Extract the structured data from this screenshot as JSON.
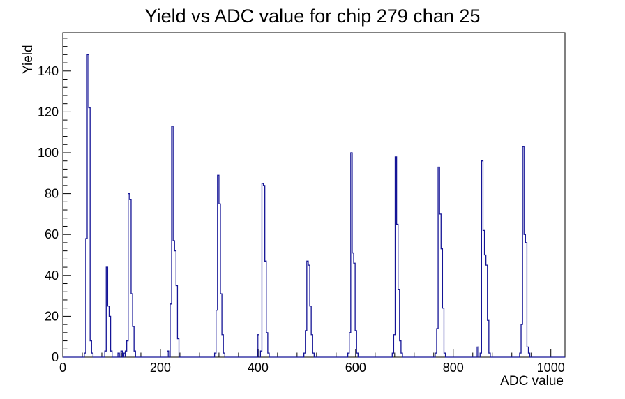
{
  "title": "Yield vs ADC value for chip 279 chan 25",
  "chart_data": {
    "type": "bar",
    "subtype": "root-histogram-outline",
    "title": "Yield vs ADC value for chip 279 chan 25",
    "xlabel": "ADC value",
    "ylabel": "Yield",
    "xlim": [
      0,
      1029
    ],
    "ylim": [
      0,
      158.7
    ],
    "x_major_ticks": [
      0,
      200,
      400,
      600,
      800,
      1000
    ],
    "x_minor_step": 40,
    "y_major_ticks": [
      0,
      20,
      40,
      60,
      80,
      100,
      120,
      140
    ],
    "y_minor_step": 4,
    "bin_width_adc": 3,
    "grid": false,
    "legend": "none",
    "line_color": "#141496",
    "axis_color": "#000000",
    "background_color": "#ffffff",
    "clusters": [
      {
        "start_adc": 44,
        "bin_heights": [
          2,
          58,
          148,
          122,
          8,
          2
        ]
      },
      {
        "start_adc": 86,
        "bin_heights": [
          3,
          44,
          25,
          20,
          3
        ]
      },
      {
        "start_adc": 113,
        "bin_heights": [
          2,
          0,
          3,
          0,
          2
        ]
      },
      {
        "start_adc": 128,
        "bin_heights": [
          3,
          8,
          80,
          77,
          31,
          15,
          3
        ]
      },
      {
        "start_adc": 214,
        "bin_heights": [
          3,
          0,
          26,
          113,
          57,
          52,
          35,
          9
        ]
      },
      {
        "start_adc": 311,
        "bin_heights": [
          2,
          23,
          89,
          75,
          31,
          11,
          2
        ]
      },
      {
        "start_adc": 399,
        "bin_heights": [
          11,
          0,
          3,
          85,
          84,
          47,
          12,
          2
        ]
      },
      {
        "start_adc": 494,
        "bin_heights": [
          2,
          13,
          47,
          45,
          25,
          11,
          2
        ]
      },
      {
        "start_adc": 584,
        "bin_heights": [
          2,
          12,
          100,
          51,
          46,
          13,
          2
        ]
      },
      {
        "start_adc": 675,
        "bin_heights": [
          2,
          11,
          98,
          65,
          33,
          8,
          2
        ]
      },
      {
        "start_adc": 763,
        "bin_heights": [
          2,
          14,
          93,
          70,
          53,
          24,
          2
        ]
      },
      {
        "start_adc": 849,
        "bin_heights": [
          5,
          0,
          2,
          96,
          62,
          50,
          45,
          18,
          2
        ]
      },
      {
        "start_adc": 936,
        "bin_heights": [
          2,
          16,
          103,
          60,
          56,
          5,
          2
        ]
      }
    ],
    "peak_summary": {
      "cluster_center_adc": [
        50,
        93,
        136,
        226,
        320,
        410,
        501,
        592,
        683,
        771,
        861,
        943
      ],
      "cluster_peak_yield": [
        148,
        44,
        80,
        113,
        89,
        85,
        47,
        100,
        98,
        93,
        96,
        103
      ]
    }
  }
}
